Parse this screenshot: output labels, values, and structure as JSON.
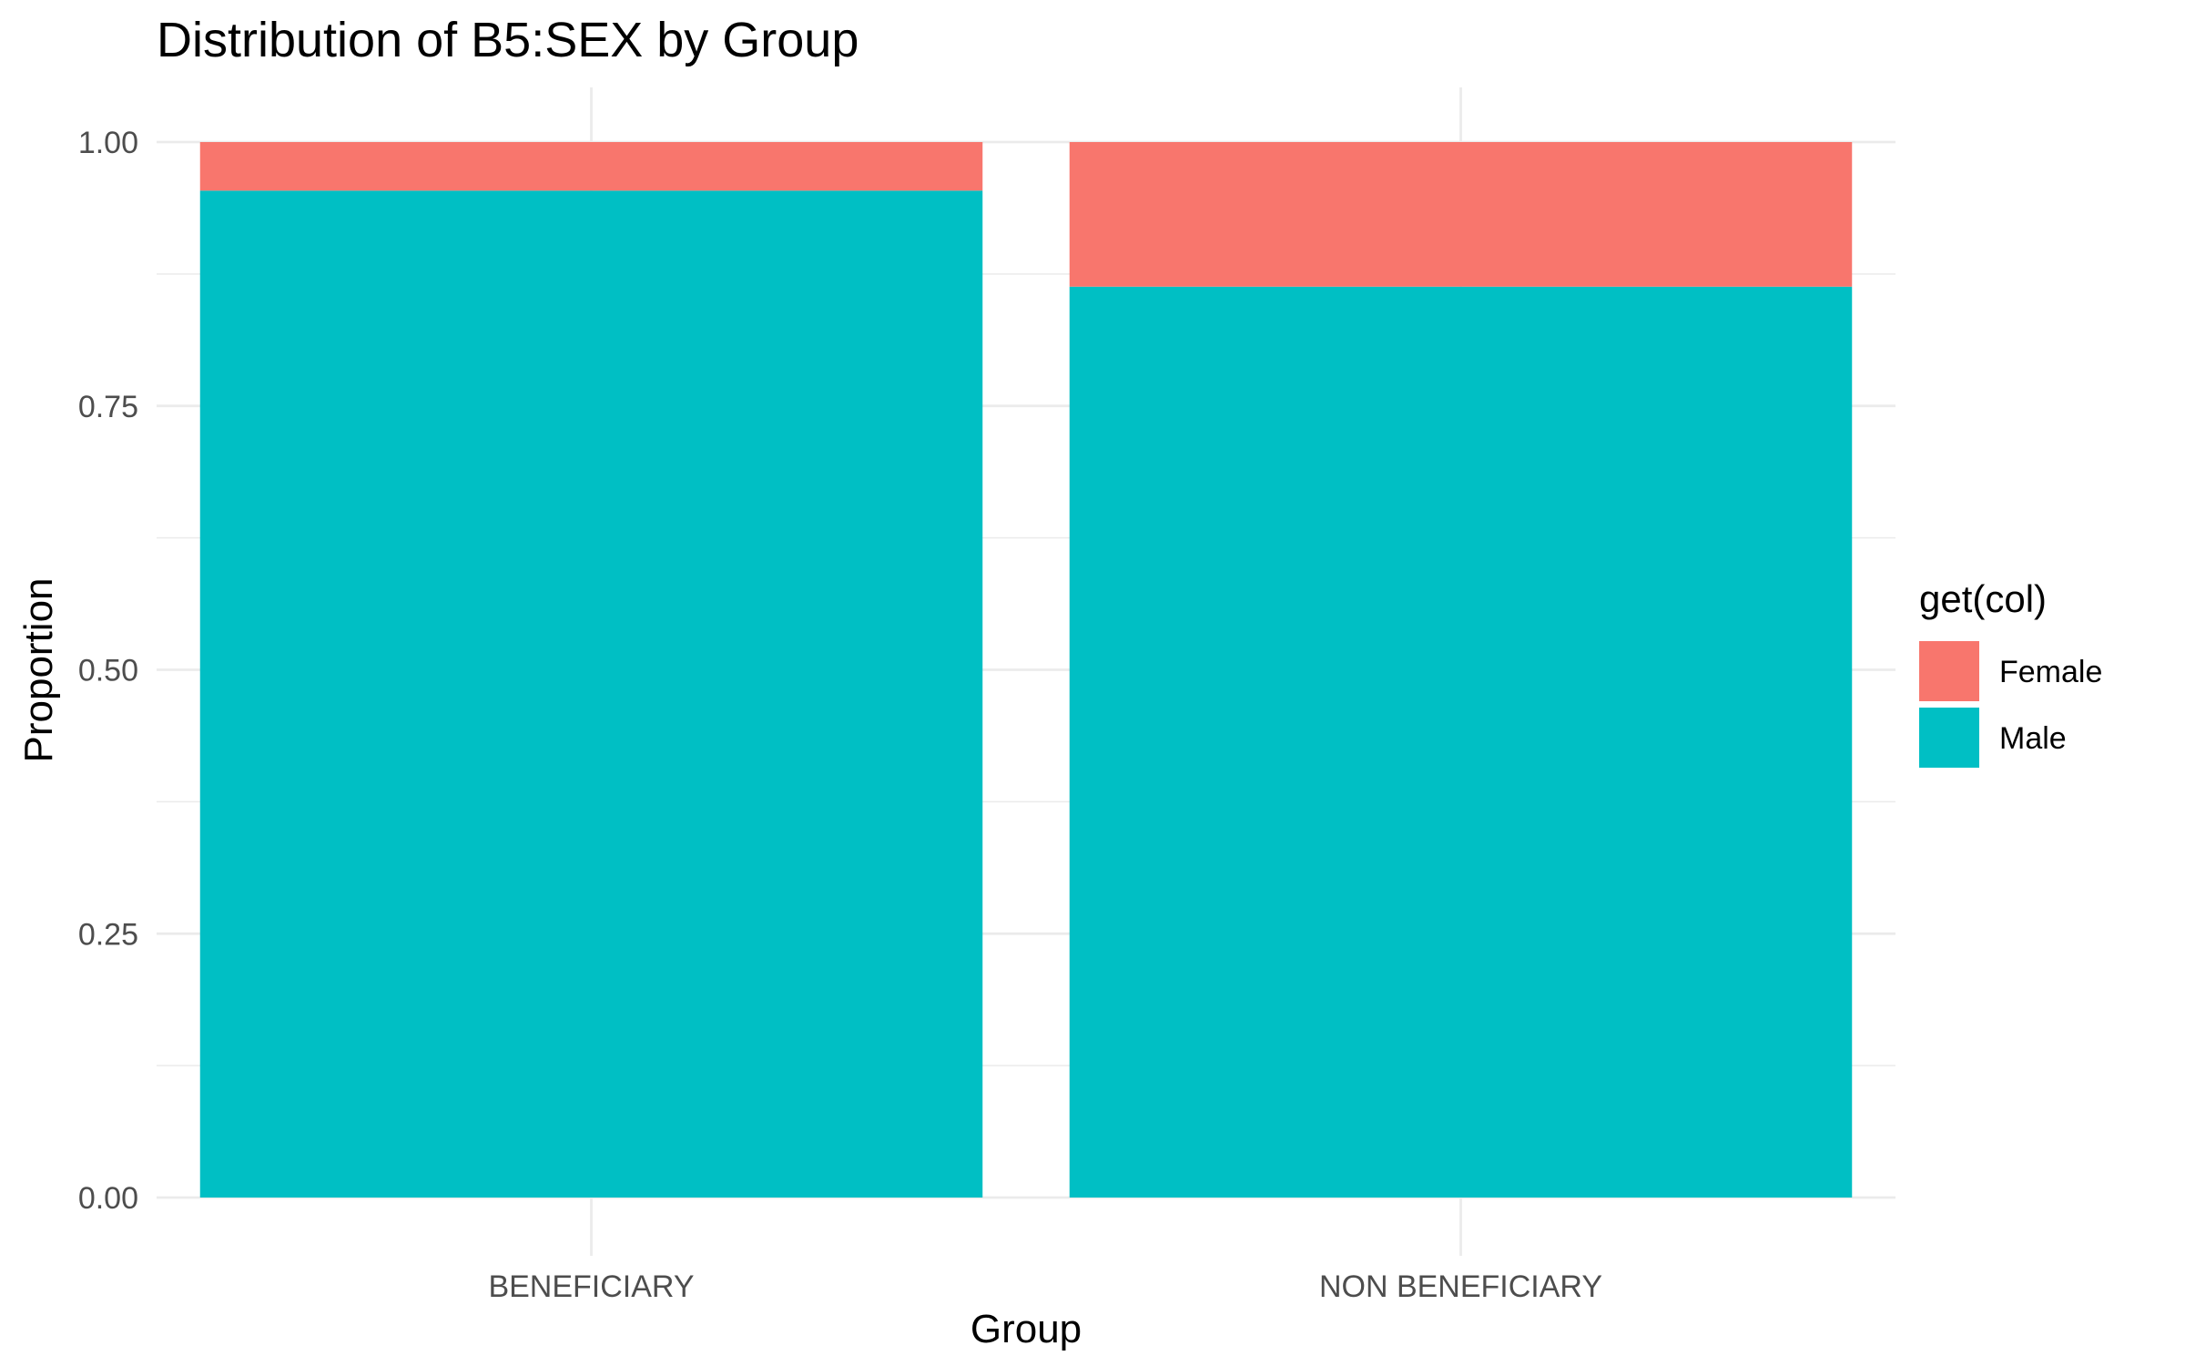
{
  "chart_data": {
    "type": "bar",
    "stacked": true,
    "title": "Distribution of B5:SEX by Group",
    "xlabel": "Group",
    "ylabel": "Proportion",
    "categories": [
      "BENEFICIARY",
      "NON BENEFICIARY"
    ],
    "series": [
      {
        "name": "Female",
        "color": "#F8766D",
        "values": [
          0.046,
          0.137
        ]
      },
      {
        "name": "Male",
        "color": "#00BFC4",
        "values": [
          0.954,
          0.863
        ]
      }
    ],
    "ylim": [
      0,
      1
    ],
    "yticks": [
      "0.00",
      "0.25",
      "0.50",
      "0.75",
      "1.00"
    ],
    "grid": true,
    "legend": {
      "title": "get(col)",
      "position": "right"
    }
  }
}
